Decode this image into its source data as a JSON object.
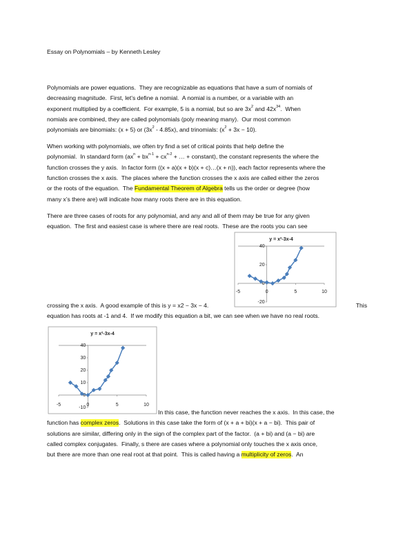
{
  "header": {
    "title": "Essay on Polynomials – by Kenneth Lesley"
  },
  "paragraphs": [
    {
      "lines": [
        [
          "Polynomials are power equations.  They are recognizable as equations that have a sum of nomials of"
        ],
        [
          "decreasing magnitude.  First, let’s define a nomial.  A nomial is a number, or a variable with an"
        ],
        [
          "exponent multiplied by a coefficient.  For example, 5 is a nomial, but so are 3x",
          {
            "sup": "2"
          },
          " and 42x",
          {
            "sup": "34"
          },
          ".  When"
        ],
        [
          "nomials are combined, they are called polynomials (poly meaning many).  Our most common"
        ],
        [
          "polynomials are binomials: (x + 5) or (3x",
          {
            "sup": "2"
          },
          " - 4.85x), and trinomials: (x",
          {
            "sup": "2"
          },
          " + 3x − 10)."
        ]
      ]
    },
    {
      "lines": [
        [
          "When working with polynomials, we often try find a set of critical points that help define the"
        ],
        [
          "polynomial.  In standard form (ax",
          {
            "sup": "n"
          },
          " + bx",
          {
            "sup": "n-1"
          },
          " + cx",
          {
            "sup": "n-2"
          },
          " + … + constant), the constant represents the where the"
        ],
        [
          "function crosses the y axis.  In factor form ((x + a)(x + b)(x + c)…(x + n)), each factor represents where the"
        ],
        [
          "function crosses the x axis.  The places where the function crosses the x axis are called either the zeros"
        ],
        [
          "or the roots of the equation.  The ",
          {
            "highlight": "Fundamental Theorem of Algebra"
          },
          " tells us the order or degree (how"
        ],
        [
          "many x’s there are) will indicate how many roots there are in this equation."
        ]
      ]
    },
    {
      "lines": [
        [
          "There are three cases of roots for any polynomial, and any and all of them may be true for any given"
        ],
        [
          "equation.  The first and easiest case is where there are real roots.  These are the roots you can see"
        ],
        [
          "crossing the x axis.  A good example of this is y = x2 − 3x − 4.",
          {
            "end": "This"
          }
        ],
        [
          "equation has roots at -1 and 4.  If we modify this equation a bit, we can see when we have no real roots."
        ],
        [
          "In this case, the function never reaches the x axis.  In this case, the"
        ],
        [
          "function has ",
          {
            "highlight": "complex zeros"
          },
          ".  Solutions in this case take the form of (x + a + bi)(x + a − bi).  This pair of"
        ],
        [
          "solutions are similar, differing only in the sign of the complex part of the factor.  (a + bi) and (a − bi) are"
        ],
        [
          "called complex conjugates.  Finally, s there are cases where a polynomial only touches the x axis once,"
        ],
        [
          "but there are more than one real root at that point.  This is called having a ",
          {
            "highlight": "multiplicity of zeros"
          },
          ".  An"
        ]
      ]
    }
  ],
  "charts": [
    {
      "type": "scatter",
      "title": "y = x²-3x-4",
      "color": "#4a7ebb",
      "x": [
        -3,
        -2,
        -1,
        0,
        1,
        2,
        3,
        3.5,
        4,
        5,
        6
      ],
      "y": [
        8,
        5,
        2,
        1,
        0,
        3,
        6,
        10,
        17,
        25,
        38
      ],
      "xlim": [
        -5,
        10
      ],
      "ylim": [
        -20,
        40
      ],
      "xticks": [
        -5,
        0,
        5,
        10
      ],
      "yticks": [
        -20,
        0,
        20,
        40
      ]
    },
    {
      "type": "scatter",
      "title": "y = x²-3x-4",
      "color": "#4a7ebb",
      "x": [
        -3,
        -2,
        -1,
        0,
        1,
        2,
        3,
        3.5,
        4,
        5,
        6
      ],
      "y": [
        10,
        7,
        1,
        0,
        4,
        5,
        12,
        15,
        20,
        26,
        38
      ],
      "xlim": [
        -5,
        10
      ],
      "ylim": [
        -10,
        40
      ],
      "xticks": [
        -5,
        0,
        5,
        10
      ],
      "yticks": [
        -10,
        0,
        10,
        20,
        30,
        40
      ]
    }
  ]
}
